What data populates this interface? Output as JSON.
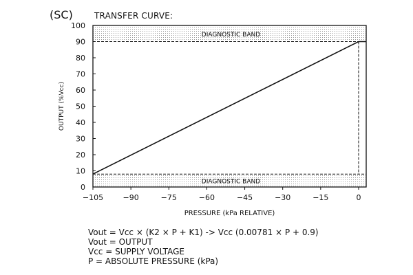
{
  "chart_data": {
    "type": "line",
    "label": "(SC)",
    "title": "TRANSFER CURVE:",
    "xlabel": "PRESSURE (kPa RELATIVE)",
    "ylabel": "OUTPUT (%Vcc)",
    "xlim": [
      -105,
      3
    ],
    "ylim": [
      0,
      100
    ],
    "x_ticks": [
      -105,
      -90,
      -75,
      -60,
      -45,
      -30,
      -15,
      0
    ],
    "x_tick_labels": [
      "−105",
      "−90",
      "−75",
      "−60",
      "−45",
      "−30",
      "−15",
      "0"
    ],
    "y_ticks": [
      0,
      10,
      20,
      30,
      40,
      50,
      60,
      70,
      80,
      90,
      100
    ],
    "y_tick_labels": [
      "0",
      "10",
      "20",
      "30",
      "40",
      "50",
      "60",
      "70",
      "80",
      "90",
      "100"
    ],
    "grid": false,
    "series": [
      {
        "x": [
          -105,
          0,
          3
        ],
        "y": [
          8,
          90,
          90
        ]
      }
    ],
    "diagnostic_bands": [
      {
        "label": "DIAGNOSTIC BAND",
        "y_range": [
          90,
          100
        ]
      },
      {
        "label": "DIAGNOSTIC BAND",
        "y_range": [
          0,
          8
        ]
      }
    ],
    "reference_lines": {
      "x": 0,
      "y": [
        90,
        8
      ]
    }
  },
  "formula_lines": [
    "Vout = Vcc × (K2 × P + K1) -> Vcc (0.00781 × P + 0.9)",
    "Vout = OUTPUT",
    "Vcc = SUPPLY VOLTAGE",
    "P = ABSOLUTE PRESSURE (kPa)"
  ],
  "colors": {
    "line": "#111111",
    "band_dots": "#9a9a9a",
    "background": "#ffffff"
  }
}
